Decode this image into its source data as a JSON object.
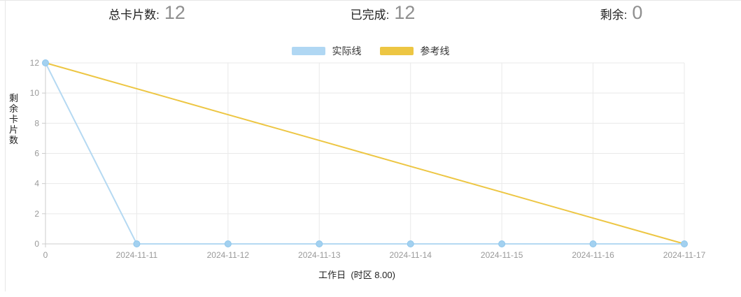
{
  "stats": [
    {
      "label": "总卡片数:",
      "value": "12"
    },
    {
      "label": "已完成:",
      "value": "12"
    },
    {
      "label": "剩余:",
      "value": "0"
    }
  ],
  "legend": [
    {
      "label": "实际线",
      "color": "#b0d7f3"
    },
    {
      "label": "参考线",
      "color": "#edc643"
    }
  ],
  "chart_data": {
    "type": "line",
    "categories": [
      "0",
      "2024-11-11",
      "2024-11-12",
      "2024-11-13",
      "2024-11-14",
      "2024-11-15",
      "2024-11-16",
      "2024-11-17"
    ],
    "series": [
      {
        "name": "实际线",
        "color": "#b5d9f2",
        "marker": true,
        "marker_fill": "#a3d1f0",
        "marker_stroke": "#8ec6ec",
        "values": [
          12,
          0,
          0,
          0,
          0,
          0,
          0,
          0
        ]
      },
      {
        "name": "参考线",
        "color": "#edc643",
        "marker": false,
        "values": [
          12,
          10.29,
          8.57,
          6.86,
          5.14,
          3.43,
          1.71,
          0
        ]
      }
    ],
    "title": "",
    "xlabel": "工作日  (时区 8.00)",
    "ylabel": "剩余卡片数",
    "ylim": [
      0,
      12
    ],
    "y_ticks": [
      0,
      2,
      4,
      6,
      8,
      10,
      12
    ],
    "grid": true,
    "legend_position": "top-center",
    "axis_color": "#cccccc",
    "grid_color": "#e9e9e9",
    "tick_label_color": "#999999"
  }
}
